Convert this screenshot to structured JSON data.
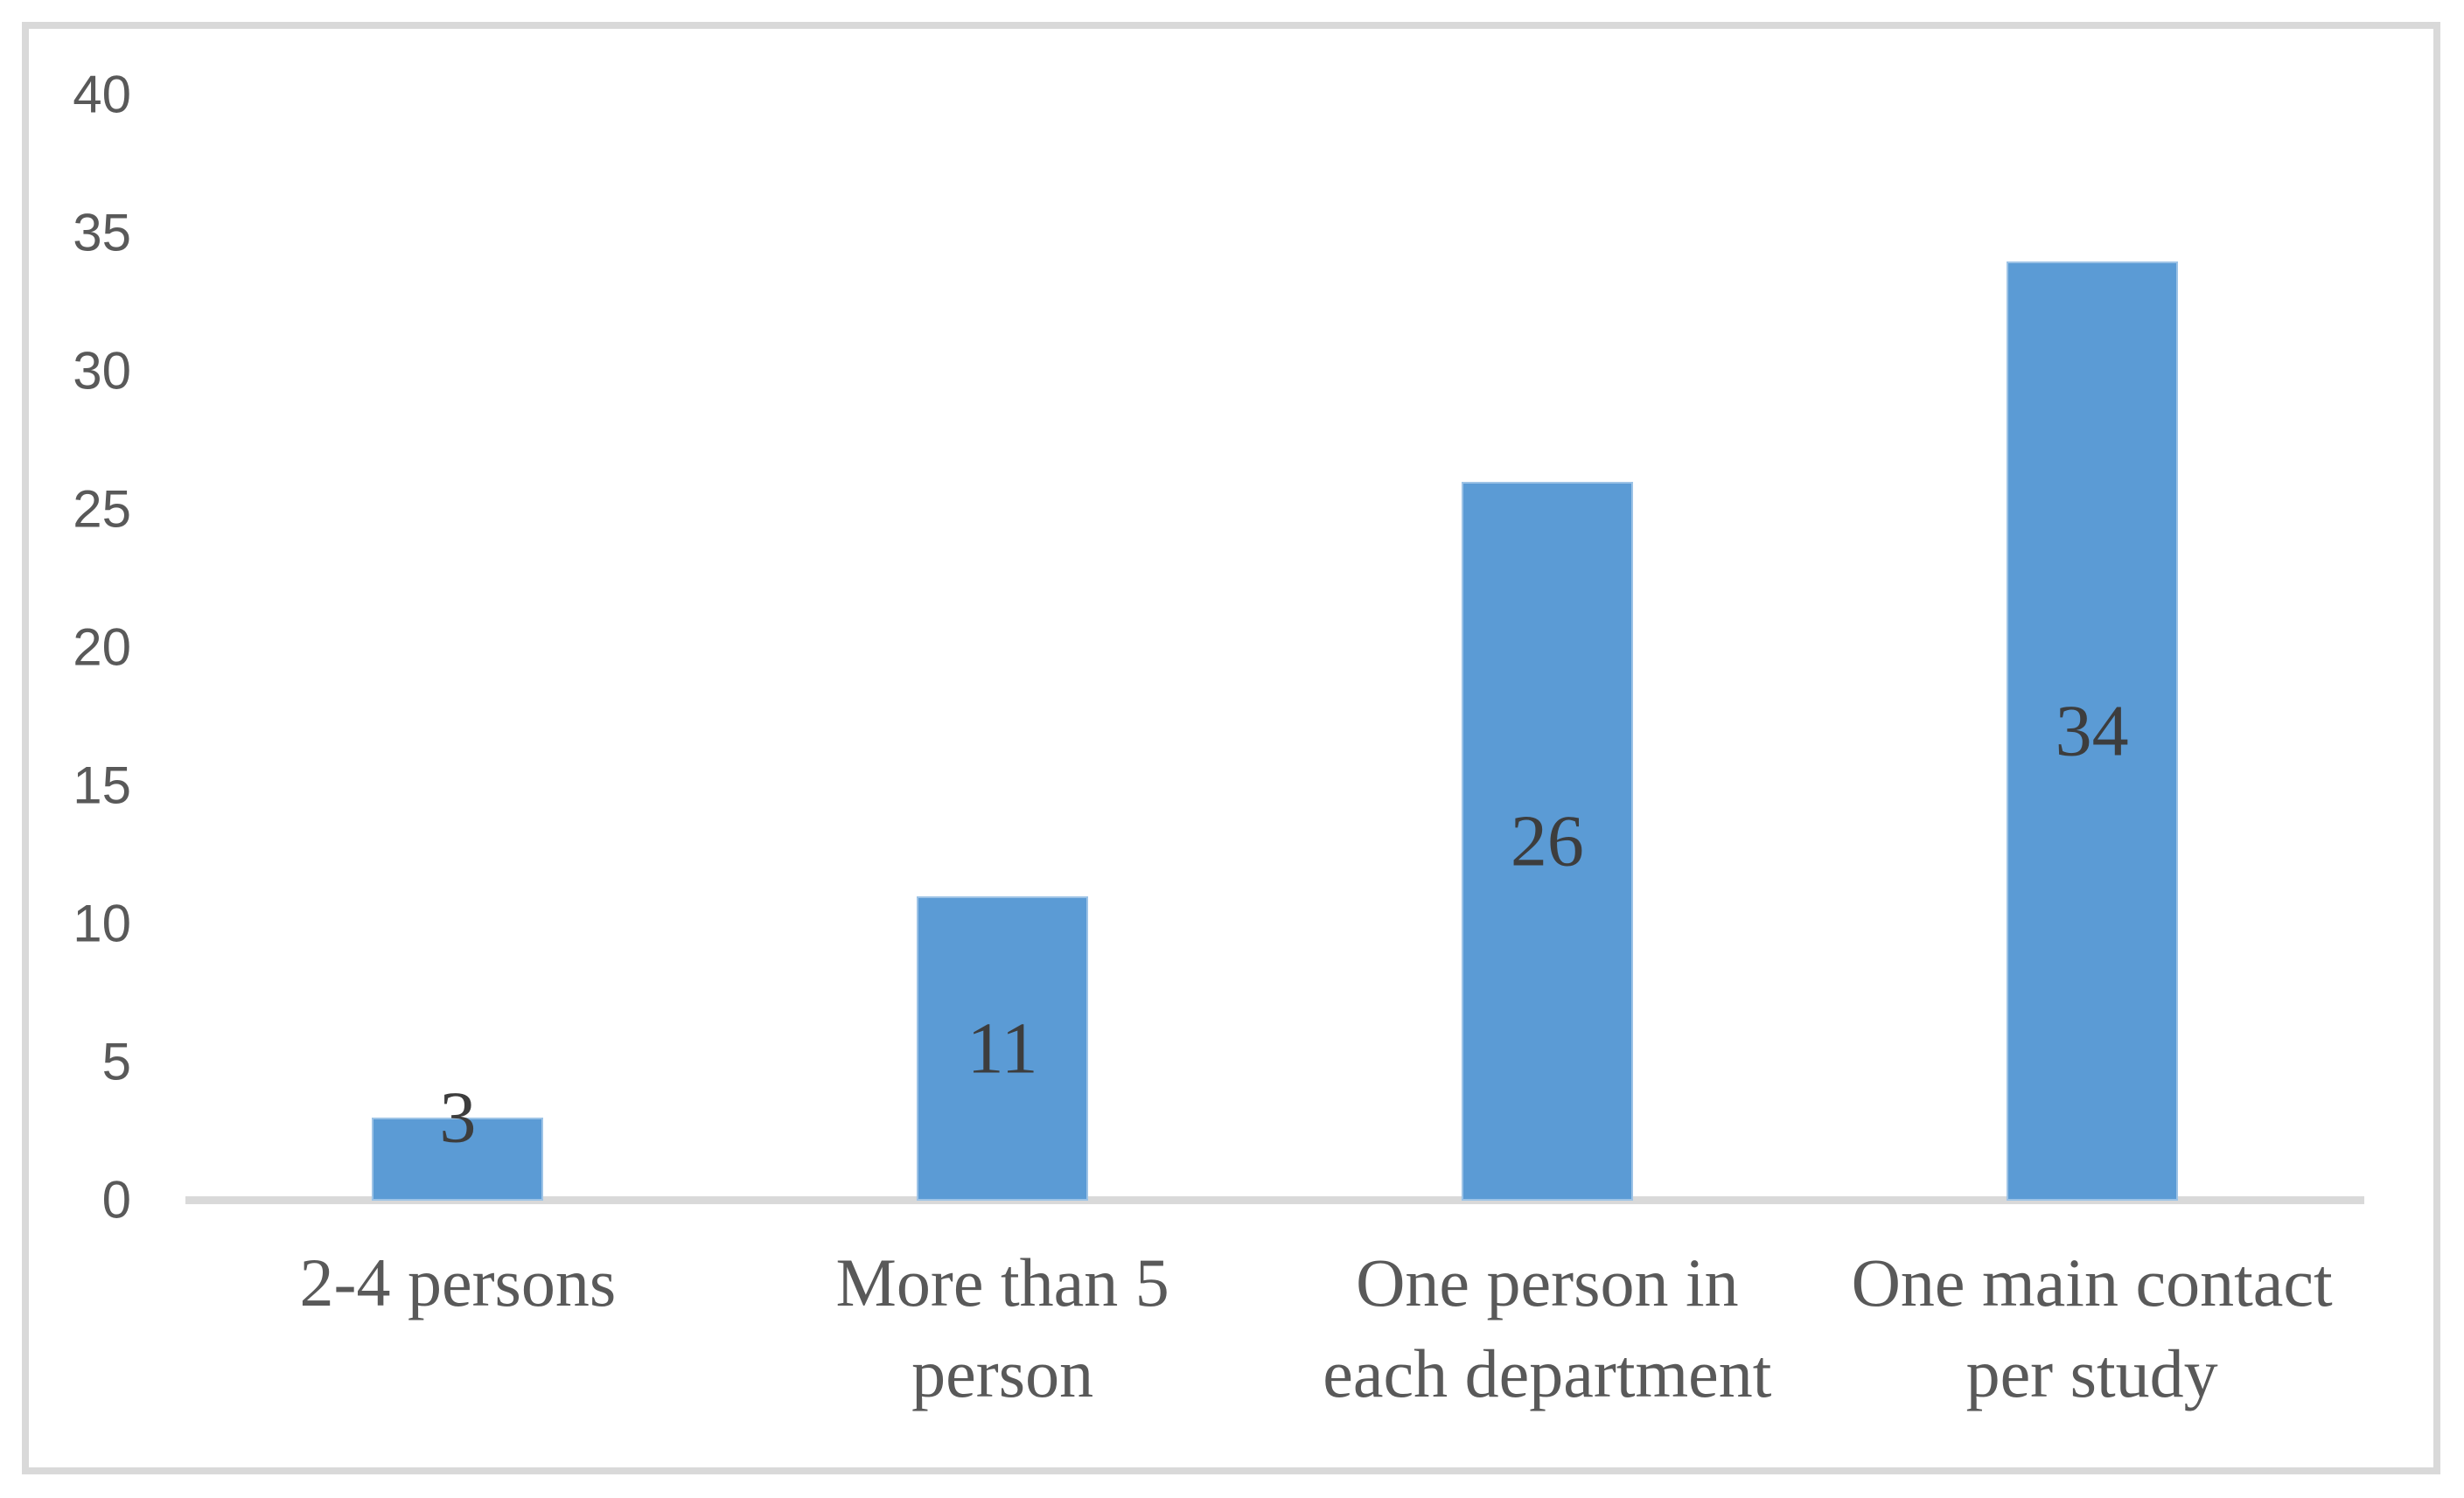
{
  "figure": {
    "kind": "document-embedded bar chart",
    "background_color": "#FFFFFF",
    "frame_border_color": "#D9D9D9"
  },
  "chart_data": {
    "type": "bar",
    "title": "",
    "xlabel": "",
    "ylabel": "",
    "categories": [
      "2-4 persons",
      "More than 5 person",
      "One person in each department",
      "One main contact per study"
    ],
    "category_lines": [
      [
        "2-4 persons"
      ],
      [
        "More than 5",
        "person"
      ],
      [
        "One person in",
        "each department"
      ],
      [
        "One main contact",
        "per study"
      ]
    ],
    "values": [
      3,
      11,
      26,
      34
    ],
    "data_labels": [
      "3",
      "11",
      "26",
      "34"
    ],
    "ylim": [
      0,
      40
    ],
    "ytick_interval": 5,
    "ytick_labels": [
      "0",
      "5",
      "10",
      "15",
      "20",
      "25",
      "30",
      "35",
      "40"
    ],
    "grid": false,
    "legend": null,
    "colors": {
      "bar": "#5B9BD5",
      "bar_edge": "#9DC3E6",
      "data_label": "#3D3D3D",
      "axis_text": "#595959",
      "axis_line": "#D9D9D9"
    }
  }
}
